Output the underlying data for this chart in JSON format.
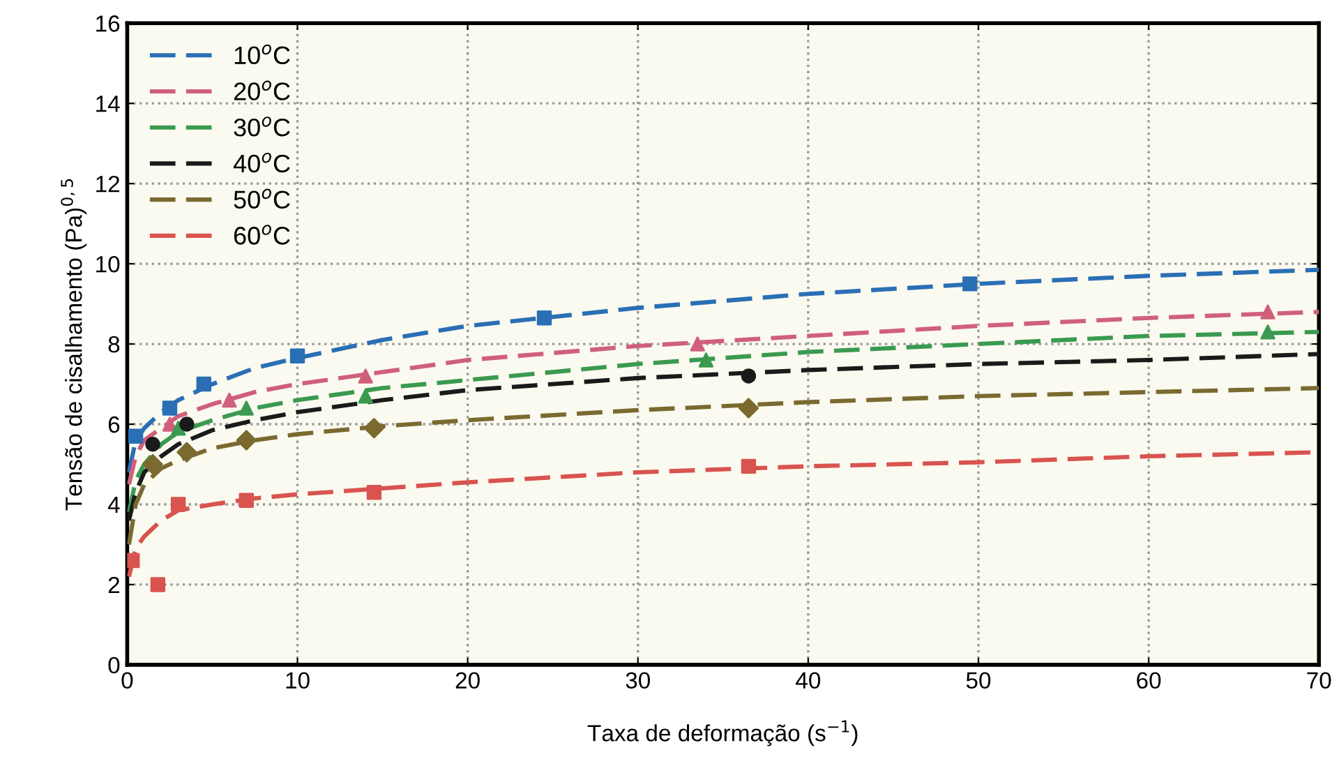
{
  "chart_data": {
    "type": "line",
    "xlabel": "Taxa de deformação (s$^{−1}$)",
    "ylabel": "Tensão de cisalhamento (Pa)$^{0,5}$",
    "xlim": [
      0,
      70
    ],
    "ylim": [
      0,
      16
    ],
    "xticks": [
      0,
      10,
      20,
      30,
      40,
      50,
      60,
      70
    ],
    "yticks": [
      0,
      2,
      4,
      6,
      8,
      10,
      12,
      14,
      16
    ],
    "grid": true,
    "legend": "top left",
    "line_style": "dashed",
    "series": [
      {
        "name": "10$^{o}$C",
        "color": "#2a6fb5",
        "x": [
          0.1,
          0.5,
          1,
          2,
          3,
          5,
          7.5,
          10,
          15,
          20,
          30,
          40,
          50,
          60,
          70
        ],
        "values": [
          4.8,
          5.6,
          5.9,
          6.3,
          6.6,
          7.0,
          7.4,
          7.65,
          8.1,
          8.45,
          8.9,
          9.25,
          9.5,
          9.7,
          9.85
        ]
      },
      {
        "name": "20$^{o}$C",
        "color": "#d0607a",
        "x": [
          0.1,
          0.5,
          1,
          2,
          3,
          5,
          7.5,
          10,
          15,
          20,
          30,
          40,
          50,
          60,
          70
        ],
        "values": [
          4.5,
          5.2,
          5.6,
          5.9,
          6.2,
          6.5,
          6.8,
          7.0,
          7.3,
          7.6,
          7.95,
          8.2,
          8.45,
          8.65,
          8.8
        ]
      },
      {
        "name": "30$^{o}$C",
        "color": "#3a9a50",
        "x": [
          0.1,
          0.5,
          1,
          2,
          3,
          5,
          7.5,
          10,
          15,
          20,
          30,
          40,
          50,
          60,
          70
        ],
        "values": [
          3.8,
          4.6,
          5.0,
          5.5,
          5.8,
          6.1,
          6.4,
          6.6,
          6.9,
          7.1,
          7.5,
          7.8,
          8.0,
          8.2,
          8.3
        ]
      },
      {
        "name": "40$^{o}$C",
        "color": "#1a1a1a",
        "x": [
          0.1,
          0.5,
          1,
          2,
          3,
          5,
          7.5,
          10,
          15,
          20,
          30,
          40,
          50,
          60,
          70
        ],
        "values": [
          3.6,
          4.3,
          4.8,
          5.2,
          5.5,
          5.85,
          6.1,
          6.3,
          6.6,
          6.85,
          7.15,
          7.35,
          7.5,
          7.6,
          7.75
        ]
      },
      {
        "name": "50$^{o}$C",
        "color": "#7a6a30",
        "x": [
          0.1,
          0.5,
          1,
          2,
          3,
          5,
          7.5,
          10,
          15,
          20,
          30,
          40,
          50,
          60,
          70
        ],
        "values": [
          3.0,
          4.0,
          4.5,
          4.9,
          5.1,
          5.4,
          5.6,
          5.75,
          5.95,
          6.1,
          6.35,
          6.55,
          6.7,
          6.8,
          6.9
        ]
      },
      {
        "name": "60$^{o}$C",
        "color": "#d9534f",
        "x": [
          0.1,
          0.5,
          1,
          2,
          3,
          5,
          7.5,
          10,
          15,
          20,
          30,
          40,
          50,
          60,
          70
        ],
        "values": [
          2.2,
          2.9,
          3.2,
          3.6,
          3.85,
          4.0,
          4.15,
          4.25,
          4.4,
          4.55,
          4.8,
          4.95,
          5.05,
          5.2,
          5.3
        ]
      },
      {
        "type": "scatter",
        "marker": "square",
        "color": "#2a6fb5",
        "x": [
          0.5,
          2.5,
          4.5,
          10,
          24.5,
          49.5
        ],
        "values": [
          5.7,
          6.4,
          7.0,
          7.7,
          8.65,
          9.5
        ]
      },
      {
        "type": "scatter",
        "marker": "triangle",
        "color": "#d0607a",
        "x": [
          2.5,
          6,
          14,
          33.5,
          67
        ],
        "values": [
          6.0,
          6.6,
          7.2,
          8.0,
          8.8
        ]
      },
      {
        "type": "scatter",
        "marker": "triangle",
        "color": "#3a9a50",
        "x": [
          3,
          7,
          14,
          34,
          67
        ],
        "values": [
          5.9,
          6.4,
          6.7,
          7.6,
          8.3
        ]
      },
      {
        "type": "scatter",
        "marker": "circle",
        "color": "#1a1a1a",
        "x": [
          1.5,
          3.5,
          36.5
        ],
        "values": [
          5.5,
          6.0,
          7.2
        ]
      },
      {
        "type": "scatter",
        "marker": "diamond",
        "color": "#7a6a30",
        "x": [
          1.5,
          3.5,
          7,
          14.5,
          36.5
        ],
        "values": [
          5.0,
          5.3,
          5.6,
          5.9,
          6.4
        ]
      },
      {
        "type": "scatter",
        "marker": "square",
        "color": "#d9534f",
        "x": [
          0.3,
          1.8,
          3,
          7,
          14.5,
          36.5
        ],
        "values": [
          2.6,
          2.0,
          4.0,
          4.1,
          4.3,
          4.95
        ]
      }
    ]
  }
}
